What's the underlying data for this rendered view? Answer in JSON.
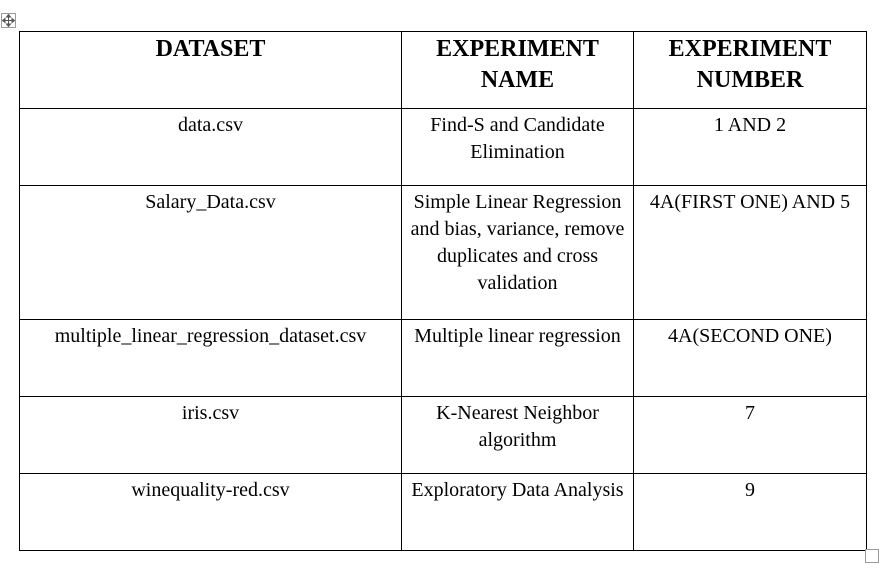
{
  "table": {
    "headers": [
      "DATASET",
      "EXPERIMENT NAME",
      "EXPERIMENT NUMBER"
    ],
    "rows": [
      {
        "dataset": "data.csv",
        "experiment_name": "Find-S and Candidate Elimination",
        "experiment_number": "1 AND 2"
      },
      {
        "dataset": "Salary_Data.csv",
        "experiment_name": "Simple Linear Regression and bias, variance, remove duplicates and cross validation",
        "experiment_number": "4A(FIRST ONE) AND 5"
      },
      {
        "dataset": "multiple_linear_regression_dataset.csv",
        "experiment_name": "Multiple linear regression",
        "experiment_number": "4A(SECOND ONE)"
      },
      {
        "dataset": "iris.csv",
        "experiment_name": "K-Nearest Neighbor algorithm",
        "experiment_number": "7"
      },
      {
        "dataset": "winequality-red.csv",
        "experiment_name": "Exploratory Data Analysis",
        "experiment_number": "9"
      }
    ]
  },
  "icons": {
    "move_handle": "table-move-handle-icon",
    "resize_handle": "table-resize-handle-icon"
  }
}
